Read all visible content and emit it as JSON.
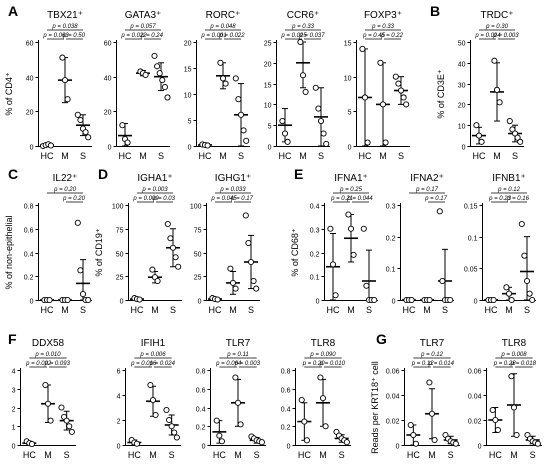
{
  "chart_data": [
    {
      "letter": "A",
      "gene": "TBX21⁺",
      "ylabel": "% of CD4⁺",
      "type": "scatter",
      "categories": [
        "HC",
        "M",
        "S"
      ],
      "ylim": [
        0,
        60
      ],
      "yticks": [
        0,
        20,
        40,
        60
      ],
      "stats": [
        "p = 0.038",
        "p = 0.063",
        "p = 0.50"
      ],
      "groups": [
        {
          "mean": 0.5,
          "sd": 0.5,
          "points": [
            0,
            0.5,
            1,
            0.3
          ]
        },
        {
          "mean": 38,
          "sd": 13,
          "points": [
            51,
            38,
            27
          ]
        },
        {
          "mean": 12,
          "sd": 6,
          "points": [
            18,
            15,
            10,
            8,
            5
          ]
        }
      ]
    },
    {
      "letter": "",
      "gene": "GATA3⁺",
      "ylabel": "",
      "type": "scatter",
      "categories": [
        "HC",
        "M",
        "S"
      ],
      "ylim": [
        0,
        60
      ],
      "yticks": [
        0,
        20,
        40,
        60
      ],
      "stats": [
        "p = 0.057",
        "p = 0.022",
        "p = 0.24"
      ],
      "groups": [
        {
          "mean": 6,
          "sd": 7,
          "points": [
            12,
            4,
            2
          ]
        },
        {
          "mean": 42,
          "sd": 1.5,
          "points": [
            43,
            42,
            41
          ]
        },
        {
          "mean": 40,
          "sd": 8,
          "points": [
            52,
            46,
            42,
            38,
            34,
            28
          ]
        }
      ]
    },
    {
      "letter": "",
      "gene": "RORC⁺",
      "ylabel": "",
      "type": "scatter",
      "categories": [
        "HC",
        "M",
        "S"
      ],
      "ylim": [
        0,
        20
      ],
      "yticks": [
        0,
        5,
        10,
        15,
        20
      ],
      "stats": [
        "p = 0.048",
        "p = 0.001",
        "p = 0.022"
      ],
      "groups": [
        {
          "mean": 0.2,
          "sd": 0.2,
          "points": [
            0.3,
            0.2,
            0.1
          ]
        },
        {
          "mean": 13.5,
          "sd": 2.5,
          "points": [
            16,
            13,
            12
          ]
        },
        {
          "mean": 6,
          "sd": 6,
          "points": [
            13,
            9,
            6,
            3,
            1
          ]
        }
      ]
    },
    {
      "letter": "",
      "gene": "CCR6⁺",
      "ylabel": "",
      "type": "scatter",
      "categories": [
        "HC",
        "M",
        "S"
      ],
      "ylim": [
        0,
        25
      ],
      "yticks": [
        0,
        5,
        10,
        15,
        20,
        25
      ],
      "stats": [
        "p = 0.33",
        "p = 0.025",
        "p = 0.037"
      ],
      "groups": [
        {
          "mean": 5,
          "sd": 4,
          "points": [
            6,
            3,
            1
          ]
        },
        {
          "mean": 20,
          "sd": 6,
          "points": [
            25,
            17,
            13
          ]
        },
        {
          "mean": 7,
          "sd": 7,
          "points": [
            14,
            9,
            6,
            3,
            0.5
          ]
        }
      ]
    },
    {
      "letter": "",
      "gene": "FOXP3⁺",
      "ylabel": "",
      "type": "scatter",
      "categories": [
        "HC",
        "M",
        "S"
      ],
      "ylim": [
        0,
        15
      ],
      "yticks": [
        0,
        5,
        10,
        15
      ],
      "stats": [
        "p = 0.33",
        "p = 0.45",
        "p = 0.22"
      ],
      "groups": [
        {
          "mean": 7,
          "sd": 7,
          "points": [
            14,
            7,
            0.5
          ]
        },
        {
          "mean": 6,
          "sd": 6,
          "points": [
            12,
            6,
            0.5
          ]
        },
        {
          "mean": 8,
          "sd": 2,
          "points": [
            10,
            9,
            8,
            7,
            6
          ]
        }
      ]
    },
    {
      "letter": "B",
      "gene": "TRDC⁺",
      "ylabel": "% of CD3E⁺",
      "type": "scatter",
      "categories": [
        "HC",
        "M",
        "S"
      ],
      "ylim": [
        0,
        50
      ],
      "yticks": [
        0,
        10,
        20,
        30,
        40,
        50
      ],
      "stats": [
        "p = 0.30",
        "p = 0.024",
        "p = 0.003"
      ],
      "groups": [
        {
          "mean": 5,
          "sd": 4,
          "points": [
            10,
            5,
            2
          ]
        },
        {
          "mean": 26,
          "sd": 14,
          "points": [
            41,
            27,
            21
          ]
        },
        {
          "mean": 6,
          "sd": 4,
          "points": [
            12,
            8,
            6,
            4,
            2
          ]
        }
      ]
    },
    {
      "letter": "C",
      "gene": "IL22⁺",
      "ylabel": "% of non-epithelial",
      "type": "scatter",
      "categories": [
        "HC",
        "M",
        "S"
      ],
      "ylim": [
        0,
        0.8
      ],
      "yticks": [
        0,
        0.2,
        0.4,
        0.6,
        0.8
      ],
      "stats": [
        "p = 0.20",
        "p = 0.20"
      ],
      "groups": [
        {
          "mean": 0,
          "sd": 0,
          "points": [
            0,
            0,
            0
          ]
        },
        {
          "mean": 0,
          "sd": 0,
          "points": [
            0,
            0,
            0
          ]
        },
        {
          "mean": 0.14,
          "sd": 0.2,
          "points": [
            0.65,
            0.25,
            0.05,
            0,
            0
          ]
        }
      ]
    },
    {
      "letter": "D",
      "gene": "IGHA1⁺",
      "ylabel": "% of CD19⁺",
      "type": "scatter",
      "categories": [
        "HC",
        "M",
        "S"
      ],
      "ylim": [
        0,
        100
      ],
      "yticks": [
        0,
        25,
        50,
        75,
        100
      ],
      "stats": [
        "p = 0.003",
        "p = 0.009",
        "p = 0.03"
      ],
      "groups": [
        {
          "mean": 1,
          "sd": 1,
          "points": [
            2,
            1,
            0.5
          ]
        },
        {
          "mean": 24,
          "sd": 6,
          "points": [
            32,
            24,
            20
          ]
        },
        {
          "mean": 55,
          "sd": 20,
          "points": [
            80,
            65,
            55,
            45,
            35
          ]
        }
      ]
    },
    {
      "letter": "",
      "gene": "IGHG1⁺",
      "ylabel": "",
      "type": "scatter",
      "categories": [
        "HC",
        "M",
        "S"
      ],
      "ylim": [
        0,
        100
      ],
      "yticks": [
        0,
        25,
        50,
        75,
        100
      ],
      "stats": [
        "p = 0.033",
        "p = 0.045",
        "p = 0.17"
      ],
      "groups": [
        {
          "mean": 1,
          "sd": 1,
          "points": [
            2,
            1,
            0.5
          ]
        },
        {
          "mean": 18,
          "sd": 12,
          "points": [
            33,
            18,
            12
          ]
        },
        {
          "mean": 40,
          "sd": 28,
          "points": [
            89,
            60,
            40,
            20,
            12
          ]
        }
      ]
    },
    {
      "letter": "E",
      "gene": "IFNA1⁺",
      "ylabel": "% of CD68⁺",
      "type": "scatter",
      "categories": [
        "HC",
        "M",
        "S"
      ],
      "ylim": [
        0,
        0.4
      ],
      "yticks": [
        0,
        0.1,
        0.2,
        0.3,
        0.4
      ],
      "stats": [
        "p = 0.25",
        "p = 0.21",
        "p = 0.044"
      ],
      "groups": [
        {
          "mean": 0.14,
          "sd": 0.14,
          "points": [
            0.3,
            0.15,
            0.02
          ]
        },
        {
          "mean": 0.26,
          "sd": 0.1,
          "points": [
            0.36,
            0.3,
            0.19
          ]
        },
        {
          "mean": 0.08,
          "sd": 0.13,
          "points": [
            0.3,
            0.06,
            0,
            0,
            0
          ]
        }
      ]
    },
    {
      "letter": "",
      "gene": "IFNA2⁺",
      "ylabel": "",
      "type": "scatter",
      "categories": [
        "HC",
        "M",
        "S"
      ],
      "ylim": [
        0,
        0.3
      ],
      "yticks": [
        0,
        0.1,
        0.2,
        0.3
      ],
      "stats": [
        "p = 0.17",
        "p = 0.17"
      ],
      "groups": [
        {
          "mean": 0,
          "sd": 0,
          "points": [
            0,
            0,
            0
          ]
        },
        {
          "mean": 0,
          "sd": 0,
          "points": [
            0,
            0,
            0
          ]
        },
        {
          "mean": 0.06,
          "sd": 0.1,
          "points": [
            0.28,
            0.06,
            0,
            0,
            0
          ]
        }
      ]
    },
    {
      "letter": "",
      "gene": "IFNB1⁺",
      "ylabel": "",
      "type": "scatter",
      "categories": [
        "HC",
        "M",
        "S"
      ],
      "ylim": [
        0,
        0.15
      ],
      "yticks": [
        0,
        0.05,
        0.1,
        0.15
      ],
      "stats": [
        "p = 0.12",
        "p = 0.23",
        "p = 0.16"
      ],
      "groups": [
        {
          "mean": 0,
          "sd": 0,
          "points": [
            0,
            0,
            0
          ]
        },
        {
          "mean": 0.01,
          "sd": 0.01,
          "points": [
            0.02,
            0.01,
            0
          ]
        },
        {
          "mean": 0.045,
          "sd": 0.055,
          "points": [
            0.12,
            0.07,
            0.03,
            0.01,
            0
          ]
        }
      ]
    },
    {
      "letter": "F",
      "gene": "DDX58",
      "ylabel": "Reads per CD68⁺ cell",
      "type": "scatter",
      "categories": [
        "HC",
        "M",
        "S"
      ],
      "ylim": [
        0,
        4
      ],
      "yticks": [
        0,
        1,
        2,
        3,
        4
      ],
      "stats": [
        "p = 0.010",
        "p = 0.022",
        "p = 0.093"
      ],
      "groups": [
        {
          "mean": 0.1,
          "sd": 0.1,
          "points": [
            0.2,
            0.1,
            0.05
          ]
        },
        {
          "mean": 2.2,
          "sd": 1,
          "points": [
            3.2,
            2.2,
            1.3
          ]
        },
        {
          "mean": 1.3,
          "sd": 0.5,
          "points": [
            2.0,
            1.5,
            1.3,
            1.0,
            0.7
          ]
        }
      ]
    },
    {
      "letter": "",
      "gene": "IFIH1",
      "ylabel": "",
      "type": "scatter",
      "categories": [
        "HC",
        "M",
        "S"
      ],
      "ylim": [
        0,
        6
      ],
      "yticks": [
        0,
        2,
        4,
        6
      ],
      "stats": [
        "p = 0.006",
        "p = 0.016",
        "p = 0.024"
      ],
      "groups": [
        {
          "mean": 0.2,
          "sd": 0.2,
          "points": [
            0.4,
            0.2,
            0.1
          ]
        },
        {
          "mean": 3.5,
          "sd": 1.2,
          "points": [
            4.8,
            3.6,
            2.4
          ]
        },
        {
          "mean": 1.6,
          "sd": 0.8,
          "points": [
            2.8,
            2.0,
            1.5,
            1.0,
            0.6
          ]
        }
      ]
    },
    {
      "letter": "",
      "gene": "TLR7",
      "ylabel": "",
      "type": "scatter",
      "categories": [
        "HC",
        "M",
        "S"
      ],
      "ylim": [
        0,
        0.8
      ],
      "yticks": [
        0,
        0.2,
        0.4,
        0.6,
        0.8
      ],
      "stats": [
        "p = 0.11",
        "p = 0.064",
        "p = 0.003"
      ],
      "groups": [
        {
          "mean": 0.14,
          "sd": 0.12,
          "points": [
            0.26,
            0.1,
            0.04
          ]
        },
        {
          "mean": 0.45,
          "sd": 0.25,
          "points": [
            0.72,
            0.45,
            0.22
          ]
        },
        {
          "mean": 0.05,
          "sd": 0.03,
          "points": [
            0.09,
            0.07,
            0.05,
            0.04,
            0.03
          ]
        }
      ]
    },
    {
      "letter": "",
      "gene": "TLR8",
      "ylabel": "",
      "type": "scatter",
      "categories": [
        "HC",
        "M",
        "S"
      ],
      "ylim": [
        0,
        0.8
      ],
      "yticks": [
        0,
        0.2,
        0.4,
        0.6,
        0.8
      ],
      "stats": [
        "p = 0.090",
        "p = 0.20",
        "p = 0.010"
      ],
      "groups": [
        {
          "mean": 0.25,
          "sd": 0.2,
          "points": [
            0.48,
            0.25,
            0.05
          ]
        },
        {
          "mean": 0.45,
          "sd": 0.25,
          "points": [
            0.72,
            0.5,
            0.2
          ]
        },
        {
          "mean": 0.07,
          "sd": 0.04,
          "points": [
            0.14,
            0.1,
            0.07,
            0.05,
            0.03
          ]
        }
      ]
    },
    {
      "letter": "G",
      "gene": "TLR7",
      "ylabel": "Reads per KRT18⁺ cell",
      "type": "scatter",
      "categories": [
        "HC",
        "M",
        "S"
      ],
      "ylim": [
        0,
        0.06
      ],
      "yticks": [
        0,
        0.02,
        0.04,
        0.06
      ],
      "stats": [
        "p = 0.12",
        "p = 0.12",
        "p = 0.014"
      ],
      "groups": [
        {
          "mean": 0.008,
          "sd": 0.008,
          "points": [
            0.016,
            0.008,
            0.001
          ]
        },
        {
          "mean": 0.025,
          "sd": 0.02,
          "points": [
            0.05,
            0.025,
            0.004
          ]
        },
        {
          "mean": 0.004,
          "sd": 0.003,
          "points": [
            0.008,
            0.005,
            0.003,
            0.002,
            0.001
          ]
        }
      ]
    },
    {
      "letter": "",
      "gene": "TLR8",
      "ylabel": "",
      "type": "scatter",
      "categories": [
        "HC",
        "M",
        "S"
      ],
      "ylim": [
        0,
        0.06
      ],
      "yticks": [
        0,
        0.02,
        0.04,
        0.06
      ],
      "stats": [
        "p = 0.008",
        "p = 0.28",
        "p = 0.018"
      ],
      "groups": [
        {
          "mean": 0.02,
          "sd": 0.01,
          "points": [
            0.028,
            0.02,
            0.012
          ]
        },
        {
          "mean": 0.032,
          "sd": 0.025,
          "points": [
            0.055,
            0.03,
            0.008
          ]
        },
        {
          "mean": 0.004,
          "sd": 0.003,
          "points": [
            0.008,
            0.005,
            0.003,
            0.002,
            0.001
          ]
        }
      ]
    }
  ]
}
